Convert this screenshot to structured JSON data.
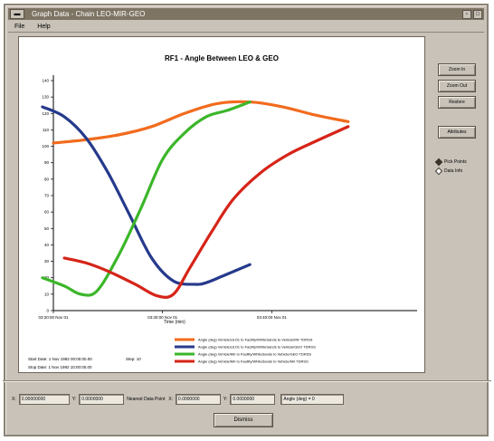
{
  "window": {
    "title": "Graph Data - Chain LEO-MIR-GEO",
    "menu": [
      "File",
      "Help"
    ]
  },
  "side_buttons": [
    "Zoom In",
    "Zoom Out",
    "Restore",
    "Attributes"
  ],
  "radio_options": [
    {
      "label": "Pick Points",
      "selected": true
    },
    {
      "label": "Data Info",
      "selected": false
    }
  ],
  "info": {
    "start_label": "Start Date: 1 Nov 1992 00:00:00.00",
    "step_label": "Step: 10",
    "stop_label": "Stop Date: 1 Nov 1992 10:00:00.00"
  },
  "fields": {
    "f1": "0.00000000",
    "f2": "0.0000000",
    "nearest_label": "Nearest Data Point",
    "f3": "0.0000000",
    "f4": "0.0000000",
    "f5": "Angle (deg) = 0"
  },
  "dismiss_label": "Dismiss",
  "colors": {
    "orange": "#f26b1d",
    "blue": "#263a8c",
    "green": "#3cb62a",
    "red": "#d62418"
  },
  "chart_data": {
    "type": "line",
    "title": "RF1 - Angle Between LEO & GEO",
    "xlabel": "Time (min)",
    "ylabel": "",
    "xlim": [
      0,
      600
    ],
    "ylim": [
      0,
      140
    ],
    "yticks": [
      0,
      10,
      20,
      30,
      40,
      50,
      60,
      70,
      80,
      90,
      100,
      110,
      120,
      130,
      140
    ],
    "xticks": [
      {
        "x": 0,
        "label": "03:20:00 Nov 01"
      },
      {
        "x": 200,
        "label": "03:30:00 Nov 01"
      },
      {
        "x": 400,
        "label": "03:40:00 Nov 01"
      }
    ],
    "series": [
      {
        "name": "Angle (deg)   Vehicle/LEO1 to Facility/WhiteSands to Vehicle/Mir  TDRSS",
        "color": "orange",
        "x": [
          0,
          60,
          120,
          180,
          240,
          300,
          360,
          420,
          480,
          540
        ],
        "y": [
          102,
          104,
          107,
          112,
          120,
          126,
          127,
          124,
          119,
          115
        ]
      },
      {
        "name": "Angle (deg)   Vehicle/LEO1 to Facility/WhiteSands to Vehicle/GEO  TDRSS",
        "color": "blue",
        "x": [
          -20,
          20,
          60,
          100,
          140,
          180,
          220,
          260,
          280,
          310,
          360
        ],
        "y": [
          124,
          118,
          105,
          84,
          58,
          32,
          18,
          16,
          17,
          21,
          28
        ]
      },
      {
        "name": "Angle (deg)   Vehicle/Mir to Facility/WhiteSands to Vehicle/GEO  TDRSS",
        "color": "green",
        "x": [
          -20,
          20,
          50,
          80,
          120,
          160,
          200,
          240,
          280,
          320,
          360
        ],
        "y": [
          20,
          15,
          10,
          12,
          34,
          62,
          92,
          108,
          118,
          122,
          127
        ]
      },
      {
        "name": "Angle (deg)   Vehicle/Mir to Facility/WhiteSands to Vehicle/Mir  TDRSS",
        "color": "red",
        "x": [
          20,
          60,
          100,
          150,
          190,
          220,
          250,
          290,
          330,
          380,
          430,
          480,
          540
        ],
        "y": [
          32,
          29,
          24,
          16,
          9,
          10,
          26,
          48,
          68,
          84,
          95,
          103,
          112
        ]
      }
    ],
    "legend_position": "bottom-right"
  }
}
